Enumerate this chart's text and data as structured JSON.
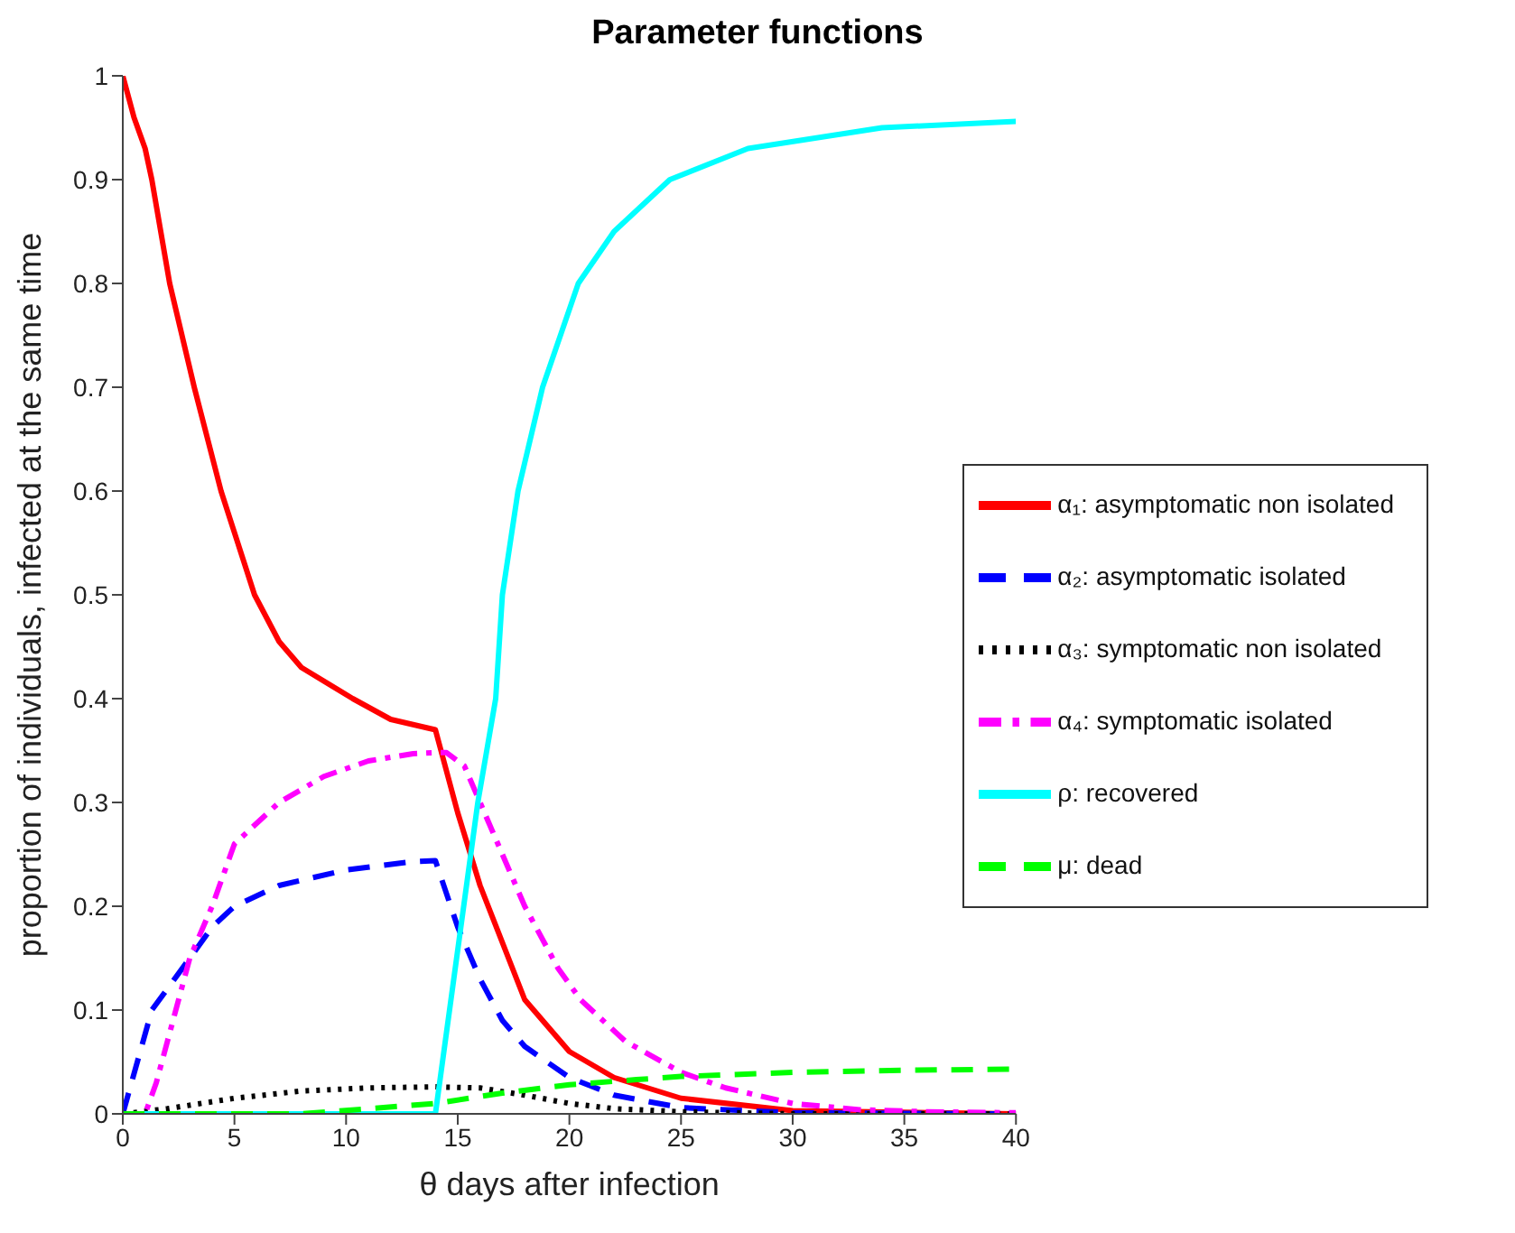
{
  "chart_data": {
    "type": "line",
    "title": "Parameter functions",
    "xlabel": "θ days after infection",
    "ylabel": "proportion of individuals, infected at the same time",
    "xlim": [
      0,
      40
    ],
    "ylim": [
      0,
      1
    ],
    "xticks": [
      0,
      5,
      10,
      15,
      20,
      25,
      30,
      35,
      40
    ],
    "yticks": [
      0,
      0.1,
      0.2,
      0.3,
      0.4,
      0.5,
      0.6,
      0.7,
      0.8,
      0.9,
      1
    ],
    "grid": false,
    "legend": "right",
    "marker": "none",
    "series": [
      {
        "name": "α₁: asymptomatic non isolated",
        "color": "#ff0000",
        "line_style": "solid",
        "x": [
          0,
          0.5,
          1,
          1.3,
          2.1,
          3.2,
          4.4,
          5.9,
          7,
          8,
          10.3,
          12,
          14,
          15,
          16,
          18,
          20,
          22,
          25,
          30,
          40
        ],
        "values": [
          1,
          0.96,
          0.93,
          0.9,
          0.8,
          0.7,
          0.6,
          0.5,
          0.455,
          0.43,
          0.4,
          0.38,
          0.37,
          0.29,
          0.22,
          0.11,
          0.06,
          0.035,
          0.015,
          0.003,
          0
        ]
      },
      {
        "name": "α₂: asymptomatic isolated",
        "color": "#0000ff",
        "line_style": "dashed",
        "x": [
          0,
          1.3,
          3,
          4,
          5,
          7,
          10,
          13,
          14,
          15,
          16,
          17,
          18,
          20,
          22,
          25,
          30,
          40
        ],
        "values": [
          0,
          0.1,
          0.15,
          0.18,
          0.2,
          0.22,
          0.235,
          0.243,
          0.244,
          0.18,
          0.13,
          0.09,
          0.065,
          0.035,
          0.018,
          0.006,
          0.001,
          0
        ]
      },
      {
        "name": "α₃: symptomatic non isolated",
        "color": "#000000",
        "line_style": "dotted",
        "x": [
          0,
          2,
          5,
          8,
          11,
          14,
          16,
          18,
          20,
          22,
          25,
          30,
          40
        ],
        "values": [
          0,
          0.005,
          0.015,
          0.022,
          0.025,
          0.026,
          0.025,
          0.018,
          0.01,
          0.005,
          0.002,
          0,
          0
        ]
      },
      {
        "name": "α₄: symptomatic isolated",
        "color": "#ff00ff",
        "line_style": "dashdot",
        "x": [
          0,
          1,
          1.5,
          2,
          3,
          4,
          5,
          7,
          9,
          11,
          13,
          14,
          14.5,
          15.3,
          16,
          17,
          18,
          19.5,
          20.5,
          22.5,
          25,
          27,
          30,
          33,
          36,
          40
        ],
        "values": [
          0,
          0,
          0.03,
          0.07,
          0.15,
          0.2,
          0.26,
          0.3,
          0.325,
          0.34,
          0.347,
          0.348,
          0.348,
          0.335,
          0.3,
          0.25,
          0.2,
          0.14,
          0.11,
          0.07,
          0.04,
          0.025,
          0.01,
          0.004,
          0.002,
          0.001
        ]
      },
      {
        "name": "ρ: recovered",
        "color": "#00ffff",
        "line_style": "solid",
        "x": [
          0,
          14,
          15.9,
          16.7,
          17,
          17.7,
          18.8,
          20.4,
          22,
          24.5,
          28,
          34,
          40
        ],
        "values": [
          0,
          0,
          0.3,
          0.4,
          0.5,
          0.6,
          0.7,
          0.8,
          0.85,
          0.9,
          0.93,
          0.95,
          0.956
        ]
      },
      {
        "name": "μ: dead",
        "color": "#00ff00",
        "line_style": "dashed",
        "x": [
          0,
          8,
          14,
          17,
          20,
          23,
          25,
          30,
          35,
          40
        ],
        "values": [
          0,
          0,
          0.01,
          0.02,
          0.028,
          0.033,
          0.036,
          0.04,
          0.042,
          0.043
        ]
      }
    ]
  }
}
